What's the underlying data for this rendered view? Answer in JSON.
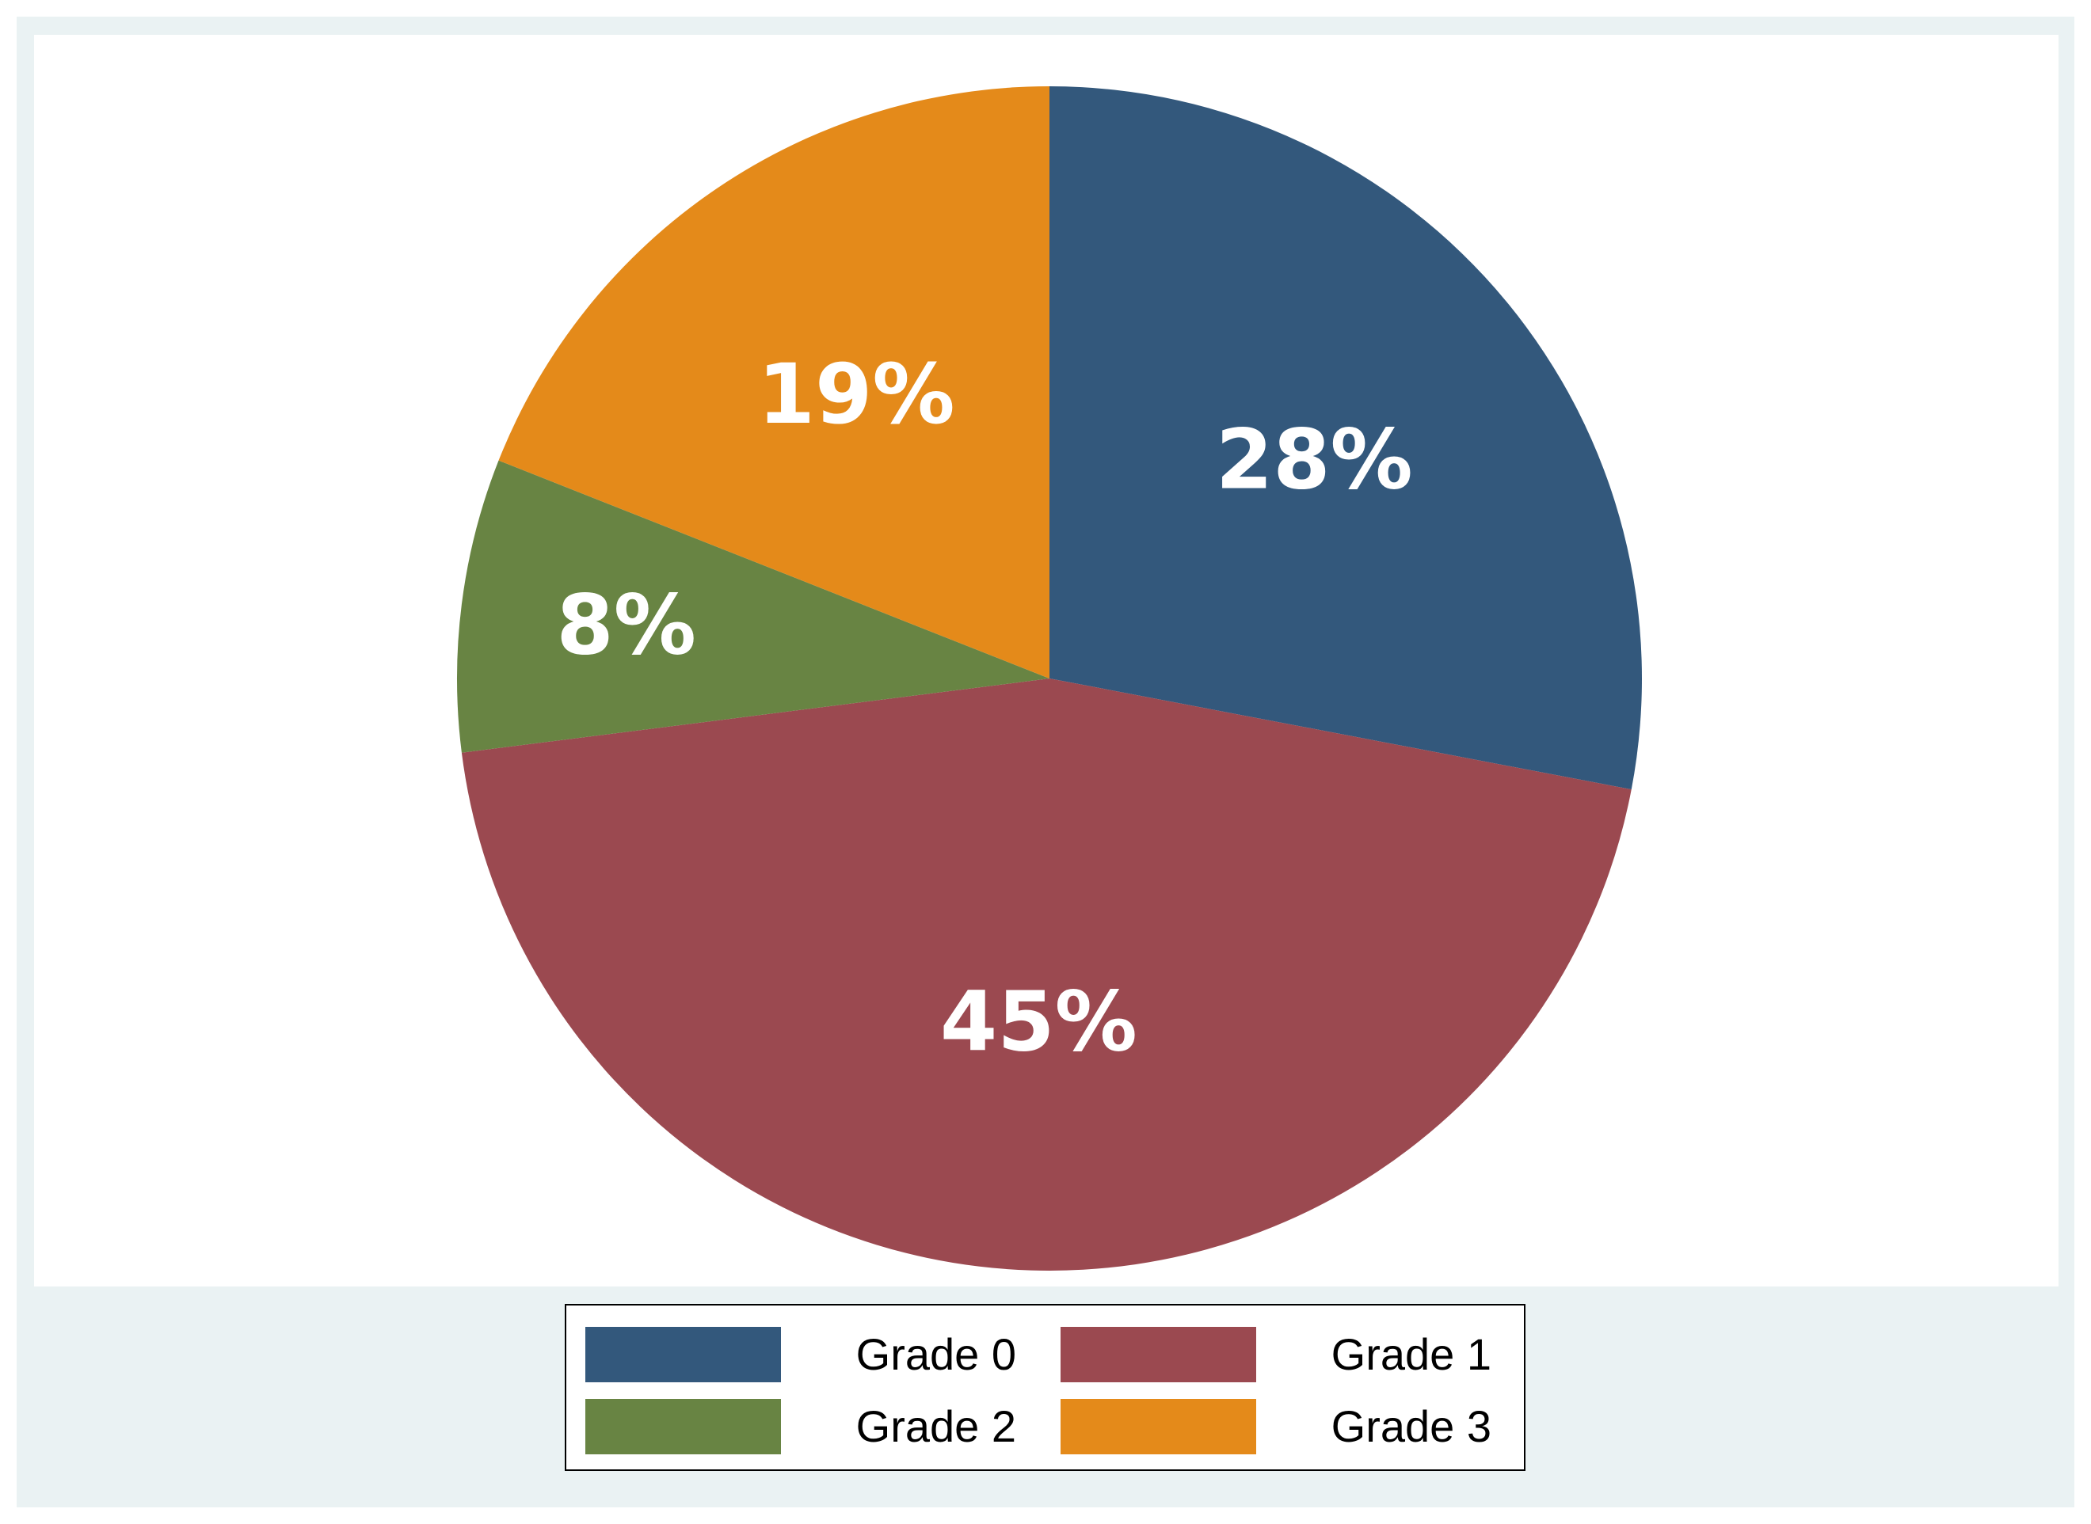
{
  "chart_data": {
    "type": "pie",
    "title": "",
    "slices": [
      {
        "label": "Grade 0",
        "value": 28,
        "display": "28%",
        "color": "#33587c"
      },
      {
        "label": "Grade 1",
        "value": 45,
        "display": "45%",
        "color": "#9b4950"
      },
      {
        "label": "Grade 2",
        "value": 8,
        "display": "8%",
        "color": "#688443"
      },
      {
        "label": "Grade 3",
        "value": 19,
        "display": "19%",
        "color": "#e48a1a"
      }
    ],
    "start_angle": "12 o'clock",
    "direction": "clockwise",
    "legend": {
      "placement": "bottom",
      "columns": 2,
      "entries": [
        "Grade 0",
        "Grade 1",
        "Grade 2",
        "Grade 3"
      ]
    },
    "colors": {
      "frame_background": "#eaf2f3",
      "plot_background": "#ffffff",
      "label_text": "#ffffff"
    }
  }
}
